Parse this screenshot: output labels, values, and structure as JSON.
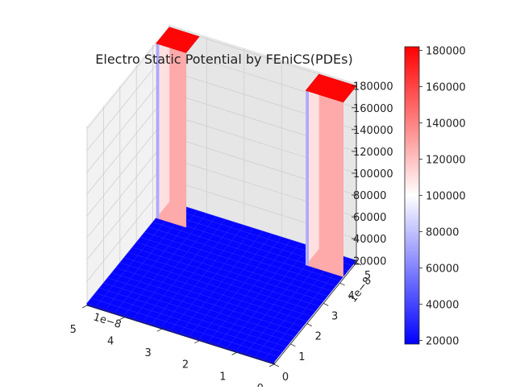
{
  "chart_data": {
    "type": "surface3d",
    "title": "Electro Static Potential by FEniCS(PDEs)",
    "x_axis": {
      "ticks": [
        0,
        1,
        2,
        3,
        4,
        5
      ],
      "offset_label": "1e−8",
      "range": [
        0,
        5
      ]
    },
    "y_axis": {
      "ticks": [
        0,
        1,
        2,
        3,
        4,
        5
      ],
      "offset_label": "1e−8",
      "range": [
        0,
        5
      ]
    },
    "z_axis": {
      "ticks": [
        20000,
        40000,
        60000,
        80000,
        100000,
        120000,
        140000,
        160000,
        180000
      ],
      "range": [
        18000,
        182000
      ]
    },
    "colorbar": {
      "colormap": "bwr",
      "range": [
        18000,
        182000
      ],
      "ticks": [
        20000,
        40000,
        60000,
        80000,
        100000,
        120000,
        140000,
        160000,
        180000
      ]
    },
    "surface": {
      "background_value": 20000,
      "plateaus": [
        {
          "x_range": [
            0,
            1
          ],
          "y_range": [
            4.2,
            5
          ],
          "value": 180000
        },
        {
          "x_range": [
            4.2,
            5
          ],
          "y_range": [
            4.2,
            5
          ],
          "value": 180000
        }
      ]
    },
    "grid": true
  }
}
